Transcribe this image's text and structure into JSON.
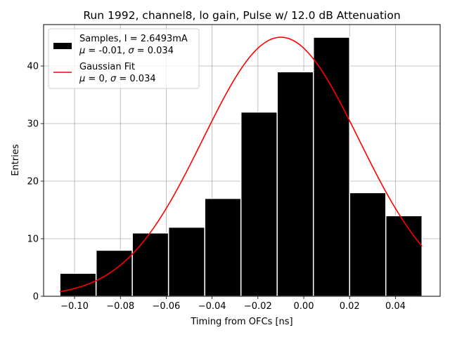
{
  "chart_data": {
    "type": "bar",
    "title": "Run 1992, channel8, lo gain, Pulse w/ 12.0 dB Attenuation",
    "xlabel": "Timing from OFCs [ns]",
    "ylabel": "Entries",
    "xlim": [
      -0.1135,
      0.0595
    ],
    "ylim": [
      0,
      47.2
    ],
    "grid": true,
    "xticks": [
      -0.1,
      -0.08,
      -0.06,
      -0.04,
      -0.02,
      0.0,
      0.02,
      0.04
    ],
    "xtick_labels": [
      "−0.10",
      "−0.08",
      "−0.06",
      "−0.04",
      "−0.02",
      "0.00",
      "0.02",
      "0.04"
    ],
    "yticks": [
      0,
      10,
      20,
      30,
      40
    ],
    "ytick_labels": [
      "0",
      "10",
      "20",
      "30",
      "40"
    ],
    "histogram": {
      "name": "Samples",
      "color": "#000000",
      "edgecolor": "#ffffff",
      "bin_edges": [
        -0.1064,
        -0.0906,
        -0.0748,
        -0.059,
        -0.0432,
        -0.0274,
        -0.0116,
        0.0042,
        0.02,
        0.0358,
        0.0516
      ],
      "counts": [
        4,
        8,
        11,
        12,
        17,
        32,
        39,
        45,
        18,
        14
      ]
    },
    "fit": {
      "name": "Gaussian Fit",
      "color": "#ff0000",
      "mu": -0.01,
      "sigma": 0.034,
      "amplitude": 45,
      "x_range": [
        -0.1064,
        0.0516
      ]
    },
    "legend": {
      "location": "top-left",
      "entries": [
        {
          "kind": "patch",
          "color": "#000000",
          "line1": "Samples, I = 2.6493mA",
          "line2_pre": "μ",
          "line2_mid": " = -0.01, ",
          "line2_sym": "σ",
          "line2_post": " = 0.034"
        },
        {
          "kind": "line",
          "color": "#ff0000",
          "line1": "Gaussian Fit",
          "line2_pre": "μ",
          "line2_mid": " = 0, ",
          "line2_sym": "σ",
          "line2_post": " = 0.034"
        }
      ]
    }
  }
}
